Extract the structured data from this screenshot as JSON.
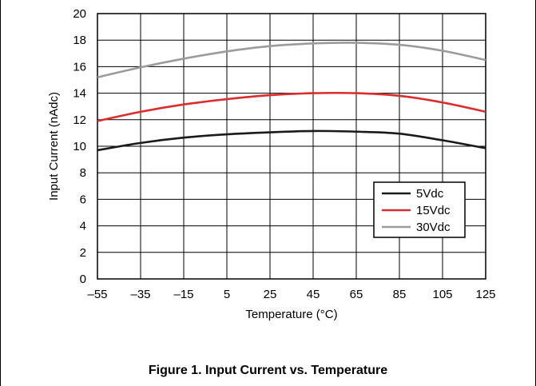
{
  "caption": "Figure 1. Input Current vs. Temperature",
  "chart_data": {
    "type": "line",
    "xlabel": "Temperature (°C)",
    "ylabel": "Input Current (nAdc)",
    "xlim": [
      -55,
      125
    ],
    "ylim": [
      0,
      20
    ],
    "x_ticks": [
      -55,
      -35,
      -15,
      5,
      25,
      45,
      65,
      85,
      105,
      125
    ],
    "x_tick_labels": [
      "–55",
      "–35",
      "–15",
      "5",
      "25",
      "45",
      "65",
      "85",
      "105",
      "125"
    ],
    "y_ticks": [
      0,
      2,
      4,
      6,
      8,
      10,
      12,
      14,
      16,
      18,
      20
    ],
    "y_tick_labels": [
      "0",
      "2",
      "4",
      "6",
      "8",
      "10",
      "12",
      "14",
      "16",
      "18",
      "20"
    ],
    "grid": true,
    "legend_position": "lower-right",
    "x": [
      -55,
      -35,
      -15,
      5,
      25,
      45,
      65,
      85,
      105,
      125
    ],
    "series": [
      {
        "name": "5Vdc",
        "color": "#1a1a1a",
        "values": [
          9.7,
          10.25,
          10.65,
          10.9,
          11.05,
          11.15,
          11.1,
          10.95,
          10.45,
          9.85
        ]
      },
      {
        "name": "15Vdc",
        "color": "#dd2c2c",
        "values": [
          11.9,
          12.6,
          13.15,
          13.55,
          13.85,
          14.0,
          14.0,
          13.8,
          13.3,
          12.6
        ]
      },
      {
        "name": "30Vdc",
        "color": "#9b9b9b",
        "values": [
          15.2,
          15.95,
          16.6,
          17.15,
          17.55,
          17.75,
          17.8,
          17.65,
          17.2,
          16.5
        ]
      }
    ]
  }
}
